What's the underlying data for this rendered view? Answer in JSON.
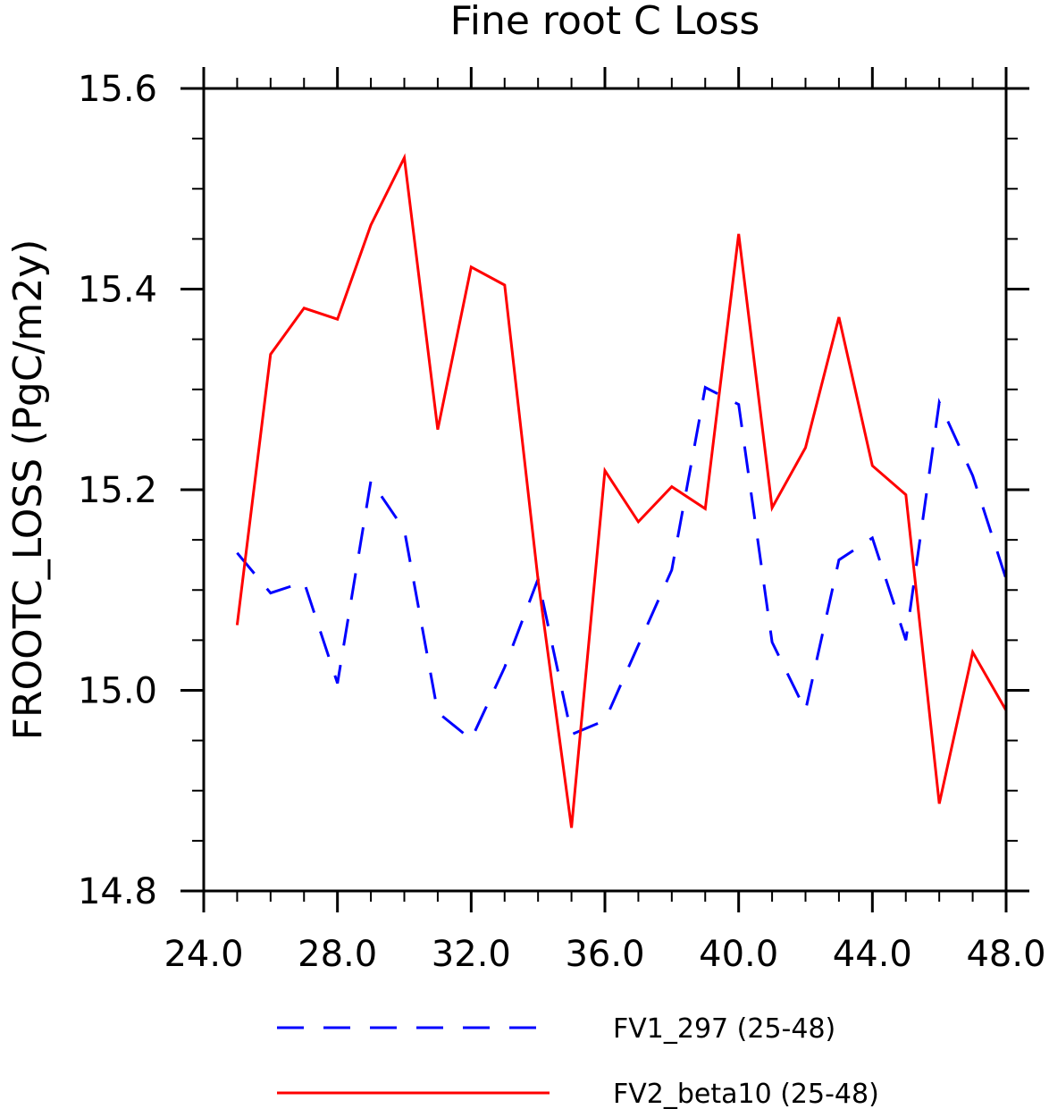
{
  "chart_data": {
    "type": "line",
    "title": "Fine root C Loss",
    "ylabel": "FROOTC_LOSS  (PgC/m2y)",
    "xlabel": "",
    "xlim": [
      24,
      48
    ],
    "ylim": [
      14.8,
      15.6
    ],
    "x_ticks": [
      "24.0",
      "28.0",
      "32.0",
      "36.0",
      "40.0",
      "44.0",
      "48.0"
    ],
    "y_ticks": [
      "14.8",
      "15.0",
      "15.2",
      "15.4",
      "15.6"
    ],
    "legend_position": "bottom",
    "x": [
      25,
      26,
      27,
      28,
      29,
      30,
      31,
      32,
      33,
      34,
      35,
      36,
      37,
      38,
      39,
      40,
      41,
      42,
      43,
      44,
      45,
      46,
      47,
      48
    ],
    "series": [
      {
        "name": "FV1_297 (25-48)",
        "color": "#0000ff",
        "dash": "dashed",
        "values": [
          15.137,
          15.097,
          15.108,
          15.007,
          15.209,
          15.16,
          14.978,
          14.951,
          15.023,
          15.111,
          14.956,
          14.97,
          15.045,
          15.12,
          15.302,
          15.285,
          15.048,
          14.98,
          15.13,
          15.152,
          15.05,
          15.287,
          15.214,
          15.111
        ]
      },
      {
        "name": "FV2_beta10 (25-48)",
        "color": "#ff0000",
        "dash": "solid",
        "values": [
          15.065,
          15.335,
          15.381,
          15.37,
          15.464,
          15.531,
          15.26,
          15.422,
          15.404,
          15.11,
          14.863,
          15.219,
          15.168,
          15.203,
          15.181,
          15.455,
          15.182,
          15.242,
          15.372,
          15.224,
          15.195,
          14.887,
          15.038,
          14.98
        ]
      }
    ]
  }
}
